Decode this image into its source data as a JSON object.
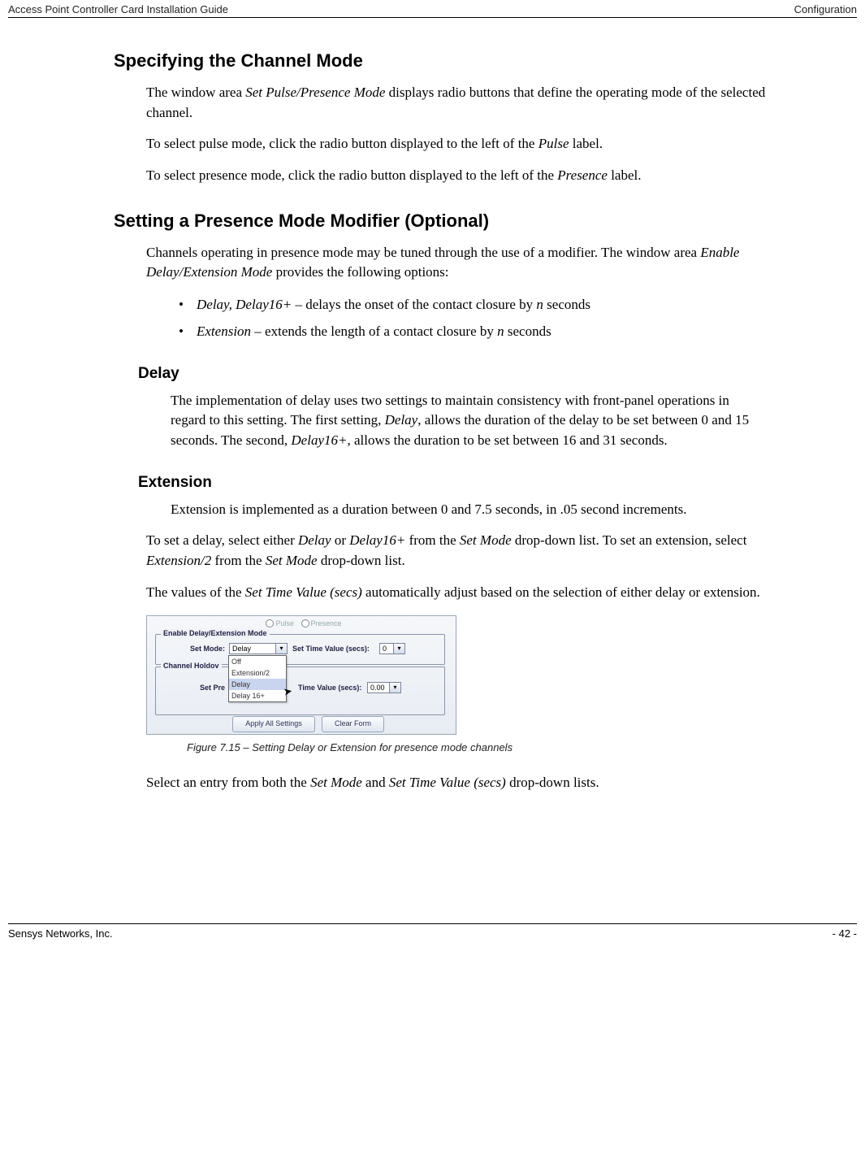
{
  "header": {
    "left": "Access Point Controller Card Installation Guide",
    "right": "Configuration"
  },
  "sections": {
    "s1": {
      "title": "Specifying the Channel Mode",
      "p1a": "The window area ",
      "p1b": "Set Pulse/Presence Mode",
      "p1c": " displays radio buttons that define the operating mode of the selected channel.",
      "p2a": "To select pulse mode, click the radio button displayed to the left of the ",
      "p2b": "Pulse",
      "p2c": " label.",
      "p3a": "To select presence mode, click the radio button displayed to the left of the ",
      "p3b": "Presence",
      "p3c": " label."
    },
    "s2": {
      "title": "Setting a Presence Mode Modifier (Optional)",
      "p1a": "Channels operating in presence mode may be tuned through the use of a modifier. The window area ",
      "p1b": "Enable Delay/Extension Mode",
      "p1c": " provides the following options:",
      "bullets": [
        {
          "em": "Delay, Delay16+",
          "rest": " – delays the onset of the contact closure by ",
          "n": "n",
          "tail": " seconds"
        },
        {
          "em": "Extension",
          "rest": " – extends the length of a contact closure by ",
          "n": "n",
          "tail": " seconds"
        }
      ]
    },
    "delay": {
      "title": "Delay",
      "pa": "The implementation of delay uses two settings to maintain consistency with front-panel operations in regard to this setting. The first setting, ",
      "pb": "Delay",
      "pc": ", allows the duration of the delay to be set between 0 and 15 seconds. The second, ",
      "pd": "Delay16+",
      "pe": ", allows the duration to be set between 16 and 31 seconds."
    },
    "ext": {
      "title": "Extension",
      "p": "Extension is implemented as a duration between 0 and 7.5 seconds, in .05 second increments."
    },
    "after": {
      "p1a": "To set a delay, select either ",
      "p1b": "Delay",
      "p1c": " or ",
      "p1d": "Delay16+",
      "p1e": " from the ",
      "p1f": "Set Mode",
      "p1g": " drop-down list. To set an extension, select ",
      "p1h": "Extension/2",
      "p1i": " from the ",
      "p1j": "Set Mode",
      "p1k": " drop-down list.",
      "p2a": "The values of the ",
      "p2b": "Set Time Value (secs)",
      "p2c": " automatically adjust based on the selection of either delay or extension.",
      "p3a": "Select an entry from both the ",
      "p3b": "Set Mode",
      "p3c": " and ",
      "p3d": "Set Time Value (secs)",
      "p3e": " drop-down lists."
    }
  },
  "figure": {
    "pulse": "Pulse",
    "presence": "Presence",
    "group1_title": "Enable Delay/Extension Mode",
    "group2_title": "Channel Holdov",
    "set_mode_label": "Set Mode:",
    "set_time_label": "Set Time Value (secs):",
    "set_pre_label": "Set Pre",
    "time_value_label": "Time Value (secs):",
    "combo_mode_value": "Delay",
    "combo_time1_value": "0",
    "combo_time2_value": "0.00",
    "dropdown_options": [
      "Off",
      "Extension/2",
      "Delay",
      "Delay 16+"
    ],
    "dropdown_selected_index": 2,
    "btn_apply": "Apply All Settings",
    "btn_clear": "Clear Form",
    "caption": "Figure 7.15 – Setting Delay or Extension for presence mode channels",
    "colors": {
      "panel_bg_top": "#f5f7fa",
      "panel_bg_bottom": "#e8ecf3",
      "border": "#9ba6b8",
      "dropdown_sel_bg": "#c9d5ef"
    }
  },
  "footer": {
    "left": "Sensys Networks, Inc.",
    "right": "- 42 -"
  }
}
